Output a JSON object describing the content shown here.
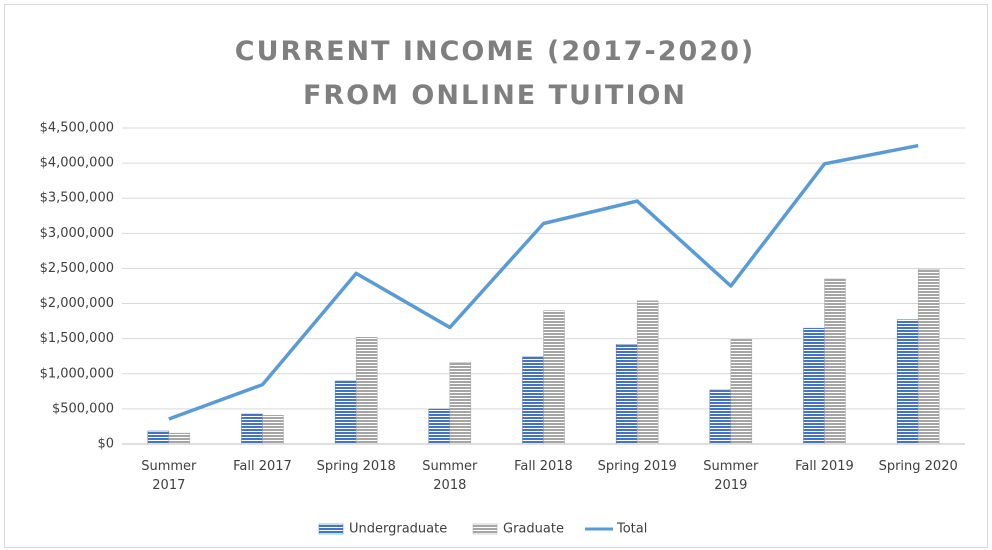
{
  "chart_data": {
    "type": "bar-line",
    "title": "CURRENT INCOME (2017-2020) FROM ONLINE TUITION",
    "categories": [
      "Summer 2017",
      "Fall 2017",
      "Spring 2018",
      "Summer 2018",
      "Fall 2018",
      "Spring 2019",
      "Summer 2019",
      "Fall 2019",
      "Spring 2020"
    ],
    "series": [
      {
        "name": "Undergraduate",
        "type": "bar",
        "color": "#4472c4",
        "values": [
          185000,
          427000,
          897000,
          498000,
          1240000,
          1420000,
          769000,
          1650000,
          1770000
        ]
      },
      {
        "name": "Graduate",
        "type": "bar",
        "color": "#a5a5a5",
        "values": [
          155000,
          410000,
          1520000,
          1160000,
          1900000,
          2040000,
          1490000,
          2350000,
          2490000
        ]
      },
      {
        "name": "Total",
        "type": "line",
        "color": "#5b9bd5",
        "values": [
          356000,
          845000,
          2430000,
          1660000,
          3140000,
          3460000,
          2250000,
          3990000,
          4250000
        ]
      }
    ],
    "ylim": [
      0,
      4500000
    ],
    "yticks": [
      {
        "value": 0,
        "label": "$0"
      },
      {
        "value": 500000,
        "label": "$500,000"
      },
      {
        "value": 1000000,
        "label": "$1,000,000"
      },
      {
        "value": 1500000,
        "label": "$1,500,000"
      },
      {
        "value": 2000000,
        "label": "$2,000,000"
      },
      {
        "value": 2500000,
        "label": "$2,500,000"
      },
      {
        "value": 3000000,
        "label": "$3,000,000"
      },
      {
        "value": 3500000,
        "label": "$3,500,000"
      },
      {
        "value": 4000000,
        "label": "$4,000,000"
      },
      {
        "value": 4500000,
        "label": "$4,500,000"
      }
    ],
    "grid": true,
    "legend": "bottom"
  }
}
